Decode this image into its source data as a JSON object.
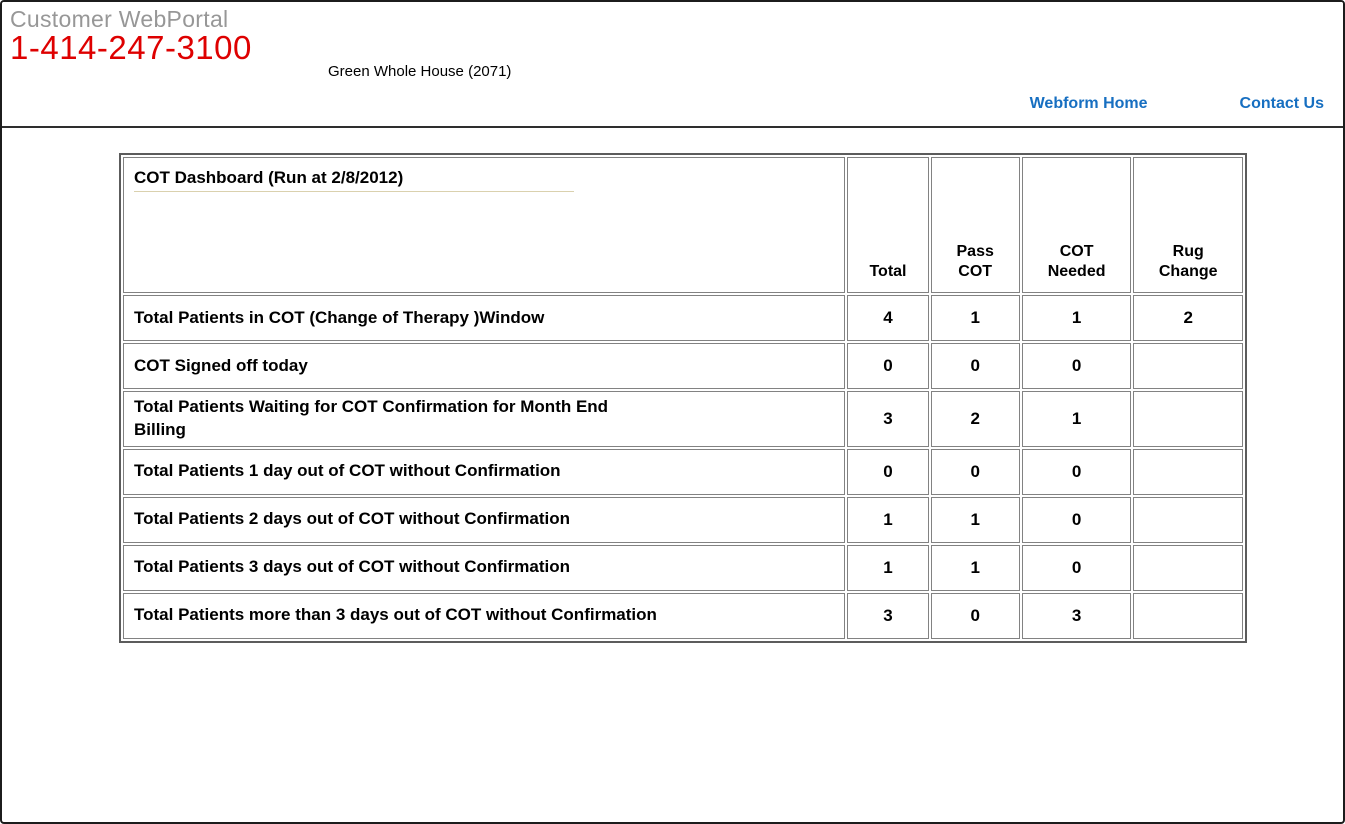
{
  "header": {
    "portal_title": "Customer WebPortal",
    "phone": "1-414-247-3100",
    "facility": "Green Whole House (2071)",
    "nav": {
      "webform_home": "Webform Home",
      "contact_us": "Contact Us"
    }
  },
  "dashboard": {
    "title": "COT Dashboard (Run at 2/8/2012)",
    "columns": [
      "Total",
      "Pass\nCOT",
      "COT\nNeeded",
      "Rug\nChange"
    ],
    "rows": [
      {
        "label": "Total Patients in COT (Change of Therapy )Window",
        "total": "4",
        "pass_cot": "1",
        "cot_needed": "1",
        "rug_change": "2"
      },
      {
        "label": "COT Signed off today",
        "total": "0",
        "pass_cot": "0",
        "cot_needed": "0",
        "rug_change": ""
      },
      {
        "label": "Total Patients Waiting for COT Confirmation for Month End\nBilling",
        "total": "3",
        "pass_cot": "2",
        "cot_needed": "1",
        "rug_change": ""
      },
      {
        "label": "Total Patients 1 day out of COT without Confirmation",
        "total": "0",
        "pass_cot": "0",
        "cot_needed": "0",
        "rug_change": ""
      },
      {
        "label": "Total Patients 2 days out of COT without Confirmation",
        "total": "1",
        "pass_cot": "1",
        "cot_needed": "0",
        "rug_change": ""
      },
      {
        "label": "Total Patients 3 days out of COT without Confirmation",
        "total": "1",
        "pass_cot": "1",
        "cot_needed": "0",
        "rug_change": ""
      },
      {
        "label": "Total Patients more than 3 days out of COT without Confirmation",
        "total": "3",
        "pass_cot": "0",
        "cot_needed": "3",
        "rug_change": ""
      }
    ]
  },
  "colors": {
    "pass_cot_bg": "#00DC00",
    "cot_needed_bg": "#F40000",
    "rug_change_bg": "#FFFF00",
    "phone_red": "#DE0000",
    "link_blue": "#176FC1",
    "portal_gray": "#979797",
    "title_underline": "#DAD1AE"
  }
}
